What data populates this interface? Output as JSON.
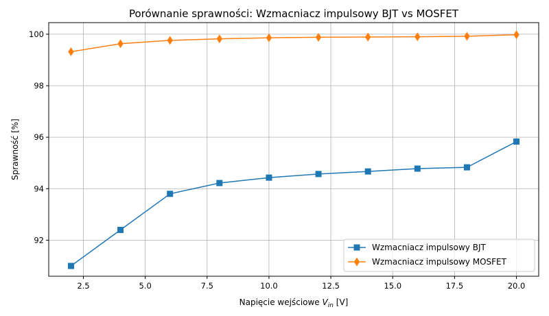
{
  "chart_data": {
    "type": "line",
    "title": "Porównanie sprawności: Wzmacniacz impulsowy BJT vs MOSFET",
    "xlabel_prefix": "Napięcie wejściowe ",
    "xlabel_var": "V",
    "xlabel_sub": "in",
    "xlabel_suffix": " [V]",
    "ylabel": "Sprawność [%]",
    "x": [
      2,
      4,
      6,
      8,
      10,
      12,
      14,
      16,
      18,
      20
    ],
    "xlim": [
      1.1,
      20.9
    ],
    "ylim": [
      90.6,
      100.45
    ],
    "xticks": [
      2.5,
      5.0,
      7.5,
      10.0,
      12.5,
      15.0,
      17.5,
      20.0
    ],
    "xtick_labels": [
      "2.5",
      "5.0",
      "7.5",
      "10.0",
      "12.5",
      "15.0",
      "17.5",
      "20.0"
    ],
    "yticks": [
      92,
      94,
      96,
      98,
      100
    ],
    "ytick_labels": [
      "92",
      "94",
      "96",
      "98",
      "100"
    ],
    "grid": true,
    "legend_position": "bottom-right",
    "series": [
      {
        "name": "Wzmacniacz impulsowy BJT",
        "color": "#1f77b4",
        "marker": "square",
        "values": [
          91.0,
          92.4,
          93.8,
          94.22,
          94.43,
          94.57,
          94.67,
          94.78,
          94.83,
          95.83
        ]
      },
      {
        "name": "Wzmacniacz impulsowy MOSFET",
        "color": "#ff7f0e",
        "marker": "diamond",
        "values": [
          99.32,
          99.63,
          99.76,
          99.82,
          99.86,
          99.88,
          99.89,
          99.9,
          99.92,
          99.98
        ]
      }
    ]
  }
}
